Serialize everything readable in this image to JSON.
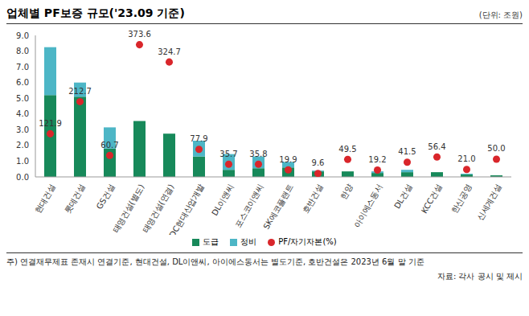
{
  "chart_data": {
    "type": "bar",
    "title": "업체별 PF보증 규모('23.09 기준)",
    "unit": "(단위: 조원)",
    "note": "주) 연결재무제표 존재시 연결기준, 현대건설, DL이앤씨, 아이에스동서는 별도기준, 호반건설은 2023년 6월 말 기준",
    "source": "자료: 각사 공시 및 제시",
    "categories": [
      "현대건설",
      "롯데건설",
      "GS건설",
      "태영건설(별도)",
      "태영건설(연결)",
      "HDC현대산업개발",
      "DL이앤씨",
      "포스코이앤씨",
      "SK에코플랜트",
      "호반건설",
      "한양",
      "아이에스동서",
      "DL건설",
      "KCC건설",
      "한신공영",
      "신세계건설"
    ],
    "stacked": true,
    "grid": false,
    "legend": "bottom",
    "ylim": [
      0,
      9
    ],
    "yticks": [
      {
        "value": 0,
        "label": "0.0"
      },
      {
        "value": 1,
        "label": "1.0"
      },
      {
        "value": 2,
        "label": "2.0"
      },
      {
        "value": 3,
        "label": "3.0"
      },
      {
        "value": 4,
        "label": "4.0"
      },
      {
        "value": 5,
        "label": "5.0"
      },
      {
        "value": 6,
        "label": "6.0"
      },
      {
        "value": 7,
        "label": "7.0"
      },
      {
        "value": 8,
        "label": "8.0"
      },
      {
        "value": 9,
        "label": "9.0"
      }
    ],
    "y2lim": [
      0,
      400
    ],
    "series": [
      {
        "name": "도급",
        "type": "bar",
        "color": "#17895a",
        "values": [
          5.2,
          5.1,
          1.8,
          3.55,
          2.75,
          1.3,
          0.45,
          0.55,
          0.6,
          0.35,
          0.35,
          0.25,
          0.3,
          0.3,
          0.15,
          0.1
        ]
      },
      {
        "name": "정비",
        "type": "bar",
        "color": "#4db6c6",
        "values": [
          3.05,
          0.9,
          1.35,
          0,
          0,
          1.0,
          1.0,
          0.75,
          0.35,
          0.05,
          0,
          0.1,
          0.15,
          0,
          0.05,
          0
        ]
      },
      {
        "name": "PF/자기자본(%)",
        "type": "scatter",
        "axis": "y2",
        "color": "#d9262b",
        "marker": "circle",
        "data_labels": true,
        "values": [
          121.9,
          212.7,
          60.7,
          373.6,
          324.7,
          77.9,
          35.7,
          35.8,
          19.9,
          9.6,
          49.5,
          19.2,
          41.5,
          56.4,
          21.0,
          50.0
        ]
      }
    ]
  }
}
